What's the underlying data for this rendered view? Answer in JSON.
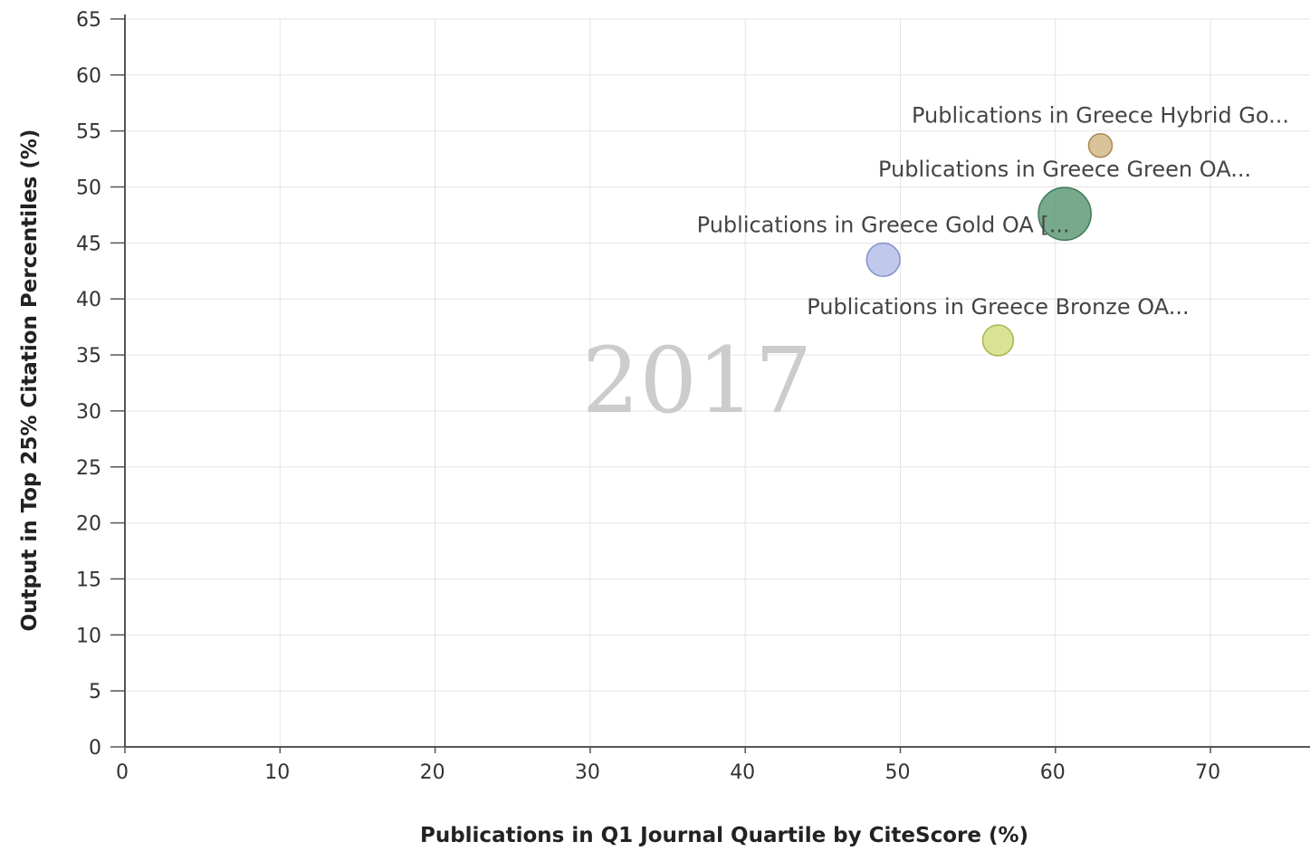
{
  "chart_data": {
    "type": "scatter",
    "title": "",
    "watermark": "2017",
    "xlabel": "Publications in Q1 Journal Quartile by CiteScore (%)",
    "ylabel": "Output in Top 25% Citation Percentiles (%)",
    "xlim": [
      0,
      76
    ],
    "ylim": [
      0,
      65
    ],
    "xticks": [
      0,
      10,
      20,
      30,
      40,
      50,
      60,
      70
    ],
    "yticks": [
      0,
      5,
      10,
      15,
      20,
      25,
      30,
      35,
      40,
      45,
      50,
      55,
      60,
      65
    ],
    "grid": true,
    "points": [
      {
        "label": "Publications in Greece Hybrid Go...",
        "x": 62.9,
        "y": 53.7,
        "size": 1,
        "color": "#d4b98a",
        "stroke": "#a88a55"
      },
      {
        "label": "Publications in Greece Green OA...",
        "x": 60.6,
        "y": 47.6,
        "size": 5,
        "color": "#5f9a78",
        "stroke": "#3f7a58"
      },
      {
        "label": "Publications in Greece Gold OA [...",
        "x": 48.9,
        "y": 43.5,
        "size": 2,
        "color": "#b5bfe8",
        "stroke": "#8590c8"
      },
      {
        "label": "Publications in Greece Bronze OA...",
        "x": 56.3,
        "y": 36.3,
        "size": 1.7,
        "color": "#d4de80",
        "stroke": "#a8b450"
      }
    ]
  }
}
